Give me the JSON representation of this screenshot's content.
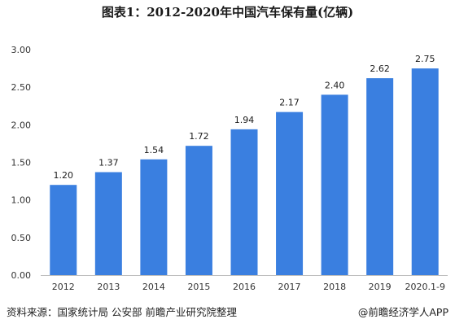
{
  "chart_data": {
    "type": "bar",
    "title": "图表1：2012-2020年中国汽车保有量(亿辆)",
    "categories": [
      "2012",
      "2013",
      "2014",
      "2015",
      "2016",
      "2017",
      "2018",
      "2019",
      "2020.1-9"
    ],
    "values": [
      1.2,
      1.37,
      1.54,
      1.72,
      1.94,
      2.17,
      2.4,
      2.62,
      2.75
    ],
    "value_labels": [
      "1.20",
      "1.37",
      "1.54",
      "1.72",
      "1.94",
      "2.17",
      "2.40",
      "2.62",
      "2.75"
    ],
    "yticks": [
      "0.00",
      "0.50",
      "1.00",
      "1.50",
      "2.00",
      "2.50",
      "3.00"
    ],
    "ylim": [
      0,
      3.0
    ],
    "grid": false,
    "bar_color": "#3a7fe0"
  },
  "footer": {
    "source": "资料来源：国家统计局 公安部 前瞻产业研究院整理",
    "brand": "@前瞻经济学人APP"
  }
}
